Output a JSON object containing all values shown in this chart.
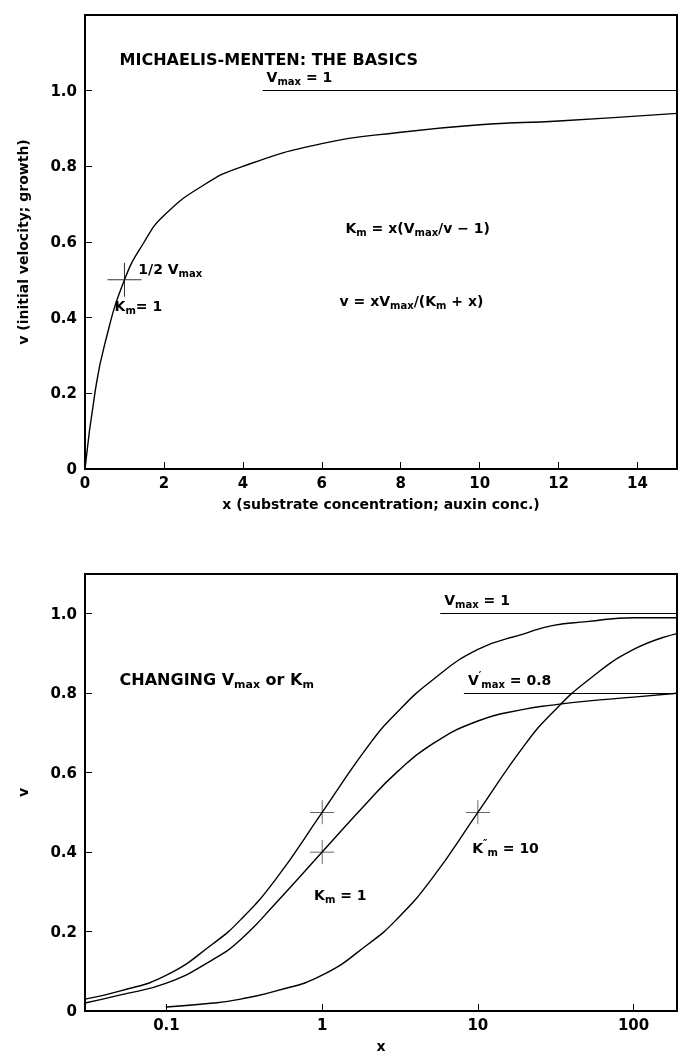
{
  "chart_data": [
    {
      "type": "line",
      "title": "MICHAELIS-MENTEN: THE BASICS",
      "xlabel": "x (substrate concentration; auxin conc.)",
      "ylabel": "v (initial velocity; growth)",
      "x": [
        0,
        0.25,
        0.5,
        1,
        1.5,
        2,
        3,
        4,
        6,
        8,
        10,
        12,
        15
      ],
      "series": [
        {
          "color": "#000000",
          "values": [
            0,
            0.2,
            0.33,
            0.5,
            0.6,
            0.67,
            0.75,
            0.8,
            0.86,
            0.89,
            0.91,
            0.92,
            0.94
          ]
        },
        {
          "type": "scatter",
          "marker": "cross",
          "color": "#000000",
          "x": [
            1
          ],
          "values": [
            0.5
          ]
        }
      ],
      "xlim": [
        0,
        15
      ],
      "xticks": [
        0,
        2,
        4,
        6,
        8,
        10,
        12,
        14
      ],
      "ylim": [
        0,
        1.2
      ],
      "yticks": [
        0,
        0.2,
        0.4,
        0.6,
        0.8,
        {
          "value": 1,
          "label": "1.0"
        }
      ],
      "ref_lines": [
        {
          "axis": "y",
          "value": 1,
          "label": "V$_{max}$ = 1",
          "color": "#000000"
        }
      ],
      "annotations": [
        "1/2 V$_{max}$",
        "K$_{m}$= 1",
        "K$_{m}$ = x(V$_{max}$/v − 1)",
        "v = xV$_{max}$/(K$_{m}$ + x)"
      ]
    },
    {
      "type": "line",
      "title": "CHANGING V$_{max}$ or K$_{m}$",
      "xlabel": "x",
      "ylabel": "v",
      "log": "x",
      "series": [
        {
          "color": "#000000",
          "x": [
            0.03,
            0.05,
            0.1,
            0.2,
            0.3,
            0.5,
            1,
            2,
            3,
            5,
            10,
            20,
            30,
            50,
            100,
            190
          ],
          "values": [
            0.03,
            0.05,
            0.09,
            0.17,
            0.23,
            0.33,
            0.5,
            0.67,
            0.75,
            0.83,
            0.91,
            0.95,
            0.97,
            0.98,
            0.99,
            0.99
          ]
        },
        {
          "color": "#000000",
          "x": [
            0.03,
            0.05,
            0.1,
            0.2,
            0.3,
            0.5,
            1,
            2,
            3,
            5,
            10,
            20,
            30,
            50,
            100,
            190
          ],
          "values": [
            0.02,
            0.04,
            0.07,
            0.13,
            0.18,
            0.27,
            0.4,
            0.53,
            0.6,
            0.67,
            0.73,
            0.76,
            0.77,
            0.78,
            0.79,
            0.8
          ]
        },
        {
          "color": "#000000",
          "x": [
            0.1,
            0.2,
            0.3,
            0.5,
            1,
            2,
            3,
            5,
            10,
            20,
            30,
            50,
            100,
            190
          ],
          "values": [
            0.01,
            0.02,
            0.03,
            0.05,
            0.09,
            0.17,
            0.23,
            0.33,
            0.5,
            0.67,
            0.75,
            0.83,
            0.91,
            0.95
          ]
        },
        {
          "type": "scatter",
          "marker": "cross",
          "color": "#000000",
          "x": [
            1,
            1,
            10
          ],
          "values": [
            0.5,
            0.4,
            0.5
          ]
        }
      ],
      "xlim": [
        0.03,
        190
      ],
      "xticks": [
        0.1,
        1,
        10,
        100
      ],
      "ylim": [
        0,
        1.1
      ],
      "yticks": [
        0,
        0.2,
        0.4,
        0.6,
        0.8,
        {
          "value": 1,
          "label": "1.0"
        }
      ],
      "ref_lines": [
        {
          "axis": "y",
          "value": 1,
          "label": "V$_{max}$ = 1",
          "color": "#000000"
        },
        {
          "axis": "y",
          "value": 0.8,
          "label": "V$^{′}$$_{max}$ = 0.8",
          "color": "#000000"
        }
      ],
      "annotations": [
        "K$_{m}$ = 1",
        "K$^{″}$$_{m}$ = 10"
      ]
    }
  ]
}
